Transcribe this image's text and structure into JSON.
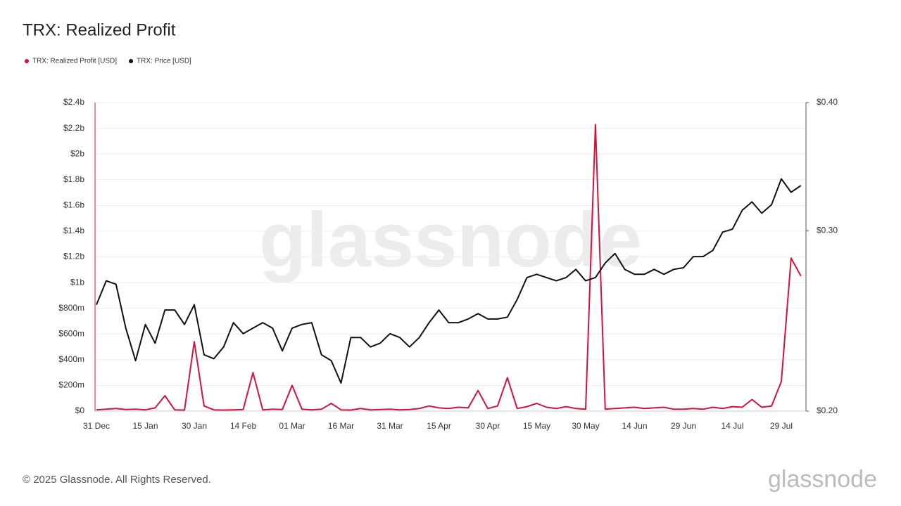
{
  "chart_data": {
    "type": "line",
    "title": "TRX: Realized Profit",
    "categories": [
      "31 Dec",
      null,
      null,
      null,
      null,
      "15 Jan",
      null,
      null,
      null,
      null,
      "30 Jan",
      null,
      null,
      null,
      null,
      "14 Feb",
      null,
      null,
      null,
      null,
      "01 Mar",
      null,
      null,
      null,
      null,
      "16 Mar",
      null,
      null,
      null,
      null,
      "31 Mar",
      null,
      null,
      null,
      null,
      "15 Apr",
      null,
      null,
      null,
      null,
      "30 Apr",
      null,
      null,
      null,
      null,
      "15 May",
      null,
      null,
      null,
      null,
      "30 May",
      null,
      null,
      null,
      null,
      "14 Jun",
      null,
      null,
      null,
      null,
      "29 Jun",
      null,
      null,
      null,
      null,
      "14 Jul",
      null,
      null,
      null,
      null,
      "29 Jul",
      null,
      null
    ],
    "series": [
      {
        "name": "TRX: Realized Profit [USD]",
        "color": "#d6123a",
        "axis": "y",
        "values": [
          10000000,
          15000000,
          20000000,
          12000000,
          15000000,
          10000000,
          25000000,
          120000000,
          10000000,
          8000000,
          540000000,
          40000000,
          10000000,
          8000000,
          10000000,
          12000000,
          300000000,
          10000000,
          15000000,
          12000000,
          200000000,
          15000000,
          10000000,
          15000000,
          60000000,
          10000000,
          8000000,
          20000000,
          10000000,
          12000000,
          15000000,
          10000000,
          12000000,
          20000000,
          40000000,
          25000000,
          20000000,
          30000000,
          25000000,
          160000000,
          20000000,
          40000000,
          260000000,
          20000000,
          35000000,
          60000000,
          30000000,
          20000000,
          35000000,
          20000000,
          15000000,
          2230000000,
          15000000,
          20000000,
          25000000,
          30000000,
          20000000,
          25000000,
          30000000,
          15000000,
          15000000,
          20000000,
          15000000,
          30000000,
          20000000,
          35000000,
          30000000,
          90000000,
          30000000,
          40000000,
          230000000,
          1190000000,
          1050000000
        ]
      },
      {
        "name": "TRX: Price [USD]",
        "color": "#111111",
        "axis": "y2",
        "values": [
          0.254,
          0.268,
          0.266,
          0.241,
          0.224,
          0.243,
          0.233,
          0.251,
          0.251,
          0.243,
          0.254,
          0.227,
          0.225,
          0.231,
          0.244,
          0.238,
          0.241,
          0.244,
          0.241,
          0.229,
          0.241,
          0.243,
          0.244,
          0.227,
          0.224,
          0.213,
          0.236,
          0.236,
          0.231,
          0.233,
          0.238,
          0.236,
          0.231,
          0.236,
          0.244,
          0.251,
          0.244,
          0.244,
          0.246,
          0.249,
          0.246,
          0.246,
          0.247,
          0.257,
          0.27,
          0.272,
          0.27,
          0.268,
          0.27,
          0.275,
          0.268,
          0.27,
          0.279,
          0.285,
          0.275,
          0.272,
          0.272,
          0.275,
          0.272,
          0.275,
          0.276,
          0.283,
          0.283,
          0.287,
          0.299,
          0.301,
          0.314,
          0.32,
          0.312,
          0.318,
          0.337,
          0.327,
          0.332
        ]
      }
    ],
    "ylim": [
      0,
      2400000000
    ],
    "yticks": [
      {
        "value": 0,
        "label": "$0"
      },
      {
        "value": 200000000,
        "label": "$200m"
      },
      {
        "value": 400000000,
        "label": "$400m"
      },
      {
        "value": 600000000,
        "label": "$600m"
      },
      {
        "value": 800000000,
        "label": "$800m"
      },
      {
        "value": 1000000000,
        "label": "$1b"
      },
      {
        "value": 1200000000,
        "label": "$1.2b"
      },
      {
        "value": 1400000000,
        "label": "$1.4b"
      },
      {
        "value": 1600000000,
        "label": "$1.6b"
      },
      {
        "value": 1800000000,
        "label": "$1.8b"
      },
      {
        "value": 2000000000,
        "label": "$2b"
      },
      {
        "value": 2200000000,
        "label": "$2.2b"
      },
      {
        "value": 2400000000,
        "label": "$2.4b"
      }
    ],
    "y2lim": [
      0.2,
      0.4
    ],
    "y2scale": "log",
    "y2ticks": [
      {
        "value": 0.2,
        "label": "$0.20"
      },
      {
        "value": 0.3,
        "label": "$0.30"
      },
      {
        "value": 0.4,
        "label": "$0.40"
      }
    ],
    "grid": true,
    "legend": "top-left",
    "watermark": "glassnode"
  },
  "footer": {
    "copyright": "© 2025 Glassnode. All Rights Reserved.",
    "logo": "glassnode"
  }
}
